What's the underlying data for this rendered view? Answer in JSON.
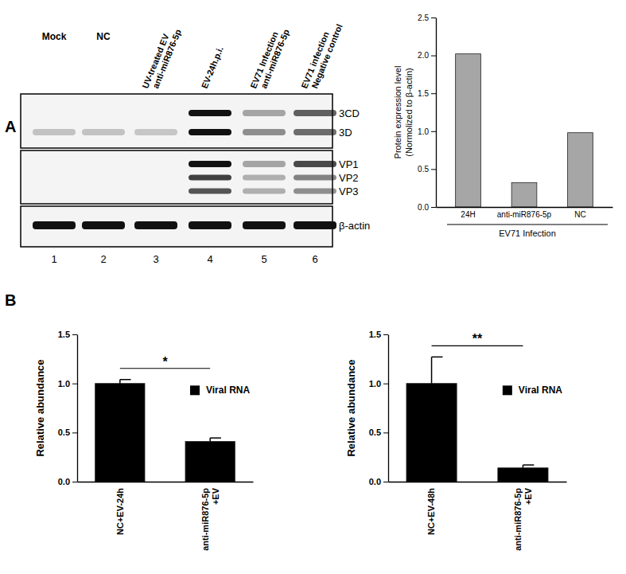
{
  "figure": {
    "panel_labels": [
      "A",
      "B"
    ],
    "blot": {
      "lanes": [
        [
          "Mock"
        ],
        [
          "NC"
        ],
        [
          "UV-treated EV",
          "anti-miR876-5p"
        ],
        [
          "EV-24h.p.i."
        ],
        [
          "EV71 Infection",
          "anti-miR876-5p"
        ],
        [
          "EV71 infection",
          "Negative control"
        ]
      ],
      "proteins": [
        "3CD",
        "3D",
        "VP1",
        "VP2",
        "VP3",
        "β-actin"
      ],
      "lane_numbers": [
        1,
        2,
        3,
        4,
        5,
        6
      ]
    }
  },
  "chart_data": [
    {
      "type": "bar",
      "categories": [
        "24H",
        "anti-miR876-5p",
        "NC"
      ],
      "values": [
        2.02,
        0.32,
        0.98
      ],
      "color": "#a6a6a6",
      "x_label": "EV71 Infection",
      "y_label": [
        "Protein expression level",
        "(Normolized to β-actin)"
      ],
      "ylim": [
        0,
        2.5
      ],
      "yticks": [
        {
          "value": 0,
          "label": "0.0"
        },
        0.5,
        {
          "value": 1,
          "label": "1.0"
        },
        1.5,
        {
          "value": 2,
          "label": "2.0"
        },
        2.5
      ]
    },
    {
      "type": "bar",
      "categories": [
        "NC+EV-24h",
        "anti-miR876-5p +EV"
      ],
      "series": [
        {
          "name": "Viral RNA",
          "color": "#000000",
          "values": [
            1.0,
            0.41
          ],
          "errors": [
            0.04,
            0.035
          ]
        }
      ],
      "legend": "upper right",
      "y_label": "Relative abundance",
      "ylim": [
        0,
        1.5
      ],
      "yticks": [
        {
          "value": 0,
          "label": "0.0"
        },
        0.5,
        {
          "value": 1,
          "label": "1.0"
        },
        1.5
      ],
      "significance": {
        "text": "*",
        "categories": [
          "NC+EV-24h",
          "anti-miR876-5p +EV"
        ]
      }
    },
    {
      "type": "bar",
      "categories": [
        "NC+EV-48h",
        "anti-miR876-5p +EV"
      ],
      "series": [
        {
          "name": "Viral RNA",
          "color": "#000000",
          "values": [
            1.0,
            0.14
          ],
          "errors": [
            0.27,
            0.03
          ]
        }
      ],
      "legend": "upper right",
      "y_label": "Relative abundance",
      "ylim": [
        0,
        1.5
      ],
      "yticks": [
        {
          "value": 0,
          "label": "0.0"
        },
        0.5,
        {
          "value": 1,
          "label": "1.0"
        },
        1.5
      ],
      "significance": {
        "text": "**",
        "categories": [
          "NC+EV-48h",
          "anti-miR876-5p +EV"
        ]
      }
    }
  ]
}
